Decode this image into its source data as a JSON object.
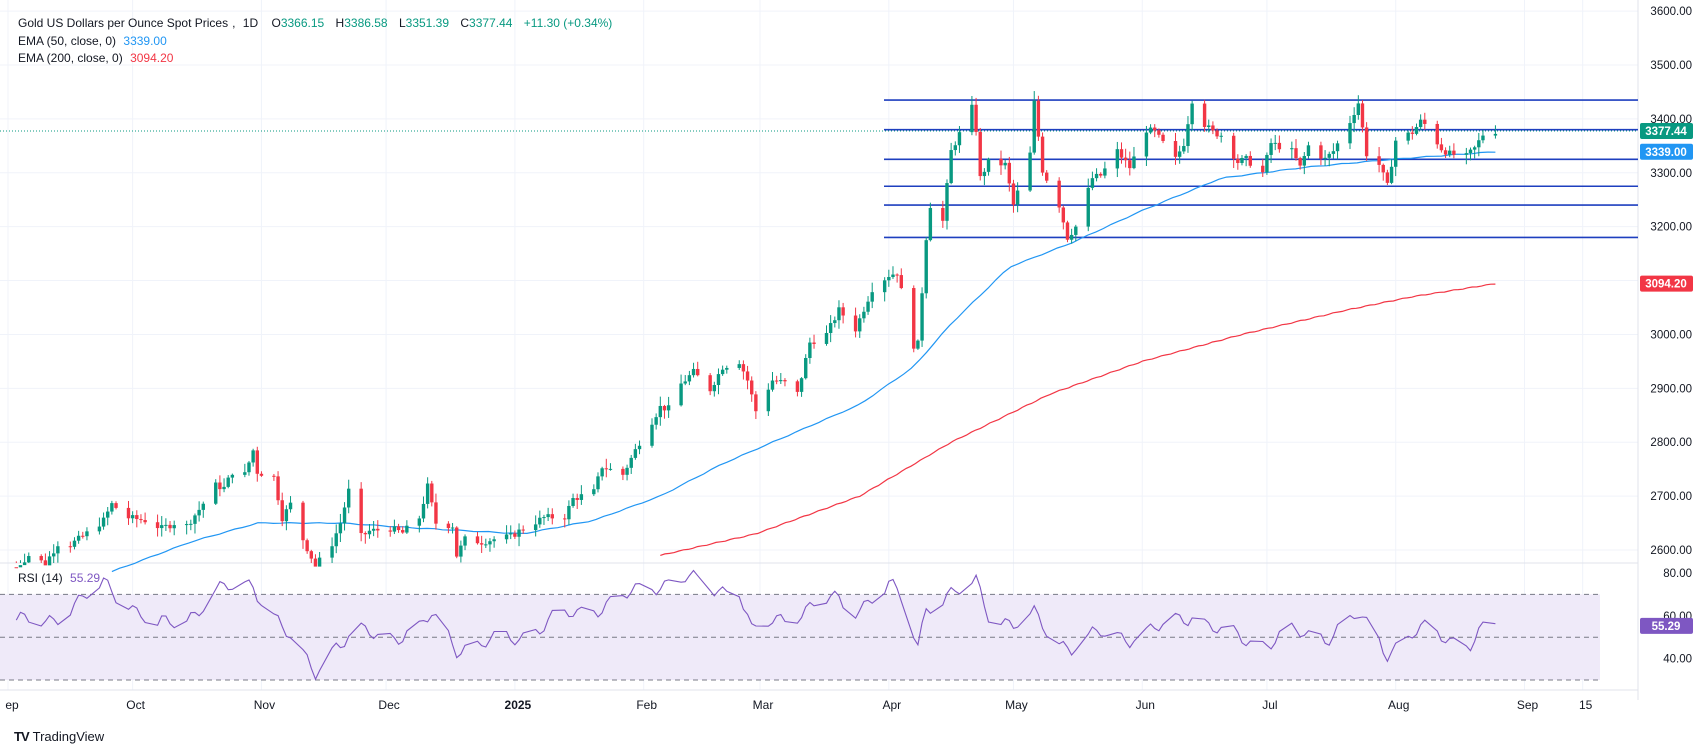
{
  "legend": {
    "symbol": "Gold US Dollars per Ounce Spot Prices",
    "interval": "1D",
    "o_label": "O",
    "o_value": "3366.15",
    "h_label": "H",
    "h_value": "3386.58",
    "l_label": "L",
    "l_value": "3351.39",
    "c_label": "C",
    "c_value": "3377.44",
    "change": "+11.30 (+0.34%)",
    "ema50_label": "EMA (50, close, 0)",
    "ema50_value": "3339.00",
    "ema200_label": "EMA (200, close, 0)",
    "ema200_value": "3094.20",
    "rsi_label": "RSI (14)",
    "rsi_value": "55.29"
  },
  "branding": {
    "logo_mark": "TV",
    "logo_text": "TradingView"
  },
  "colors": {
    "up": "#089981",
    "down": "#f23645",
    "ema50": "#2196f3",
    "ema200": "#f23645",
    "hlines": "#1e3fbf",
    "rsi": "#7e57c2",
    "rsi_band": "#efeaf9"
  },
  "chart_data": {
    "type": "candlestick",
    "price_axis": {
      "ticks": [
        2600,
        2700,
        2800,
        2900,
        3000,
        3100,
        3200,
        3300,
        3400,
        3500,
        3600
      ],
      "tick_labels": [
        "2600.00",
        "2700.00",
        "2800.00",
        "2900.00",
        "3000.00",
        "3100.00",
        "3200.00",
        "3300.00",
        "3400.00",
        "3500.00",
        "3600.00"
      ]
    },
    "time_axis": {
      "labels": [
        "ep",
        "Oct",
        "Nov",
        "Dec",
        "2025",
        "Feb",
        "Mar",
        "Apr",
        "May",
        "Jun",
        "Jul",
        "Aug",
        "Sep",
        "15"
      ],
      "dates": [
        "2024-09-01",
        "2024-10-01",
        "2024-11-01",
        "2024-12-01",
        "2025-01-01",
        "2025-02-01",
        "2025-03-01",
        "2025-04-01",
        "2025-05-01",
        "2025-06-01",
        "2025-07-01",
        "2025-08-01",
        "2025-09-01",
        "2025-09-15"
      ]
    },
    "horizontal_levels": [
      3435,
      3380,
      3325,
      3275,
      3240,
      3180
    ],
    "price_badges": [
      {
        "label": "3377.44",
        "value": 3377.44,
        "color": "#089981"
      },
      {
        "label": "3339.00",
        "value": 3339.0,
        "color": "#2196f3"
      },
      {
        "label": "3094.20",
        "value": 3094.2,
        "color": "#f23645"
      }
    ],
    "closes": [
      [
        "2024-09-03",
        2568
      ],
      [
        "2024-09-06",
        2590
      ],
      [
        "2024-09-10",
        2575
      ],
      [
        "2024-09-13",
        2612
      ],
      [
        "2024-09-16",
        2610
      ],
      [
        "2024-09-19",
        2625
      ],
      [
        "2024-09-24",
        2655
      ],
      [
        "2024-09-26",
        2685
      ],
      [
        "2024-09-30",
        2660
      ],
      [
        "2024-10-04",
        2655
      ],
      [
        "2024-10-08",
        2640
      ],
      [
        "2024-10-11",
        2650
      ],
      [
        "2024-10-14",
        2645
      ],
      [
        "2024-10-17",
        2675
      ],
      [
        "2024-10-21",
        2720
      ],
      [
        "2024-10-23",
        2715
      ],
      [
        "2024-10-25",
        2745
      ],
      [
        "2024-10-28",
        2740
      ],
      [
        "2024-10-30",
        2785
      ],
      [
        "2024-10-31",
        2745
      ],
      [
        "2024-11-04",
        2735
      ],
      [
        "2024-11-06",
        2660
      ],
      [
        "2024-11-08",
        2685
      ],
      [
        "2024-11-11",
        2620
      ],
      [
        "2024-11-14",
        2570
      ],
      [
        "2024-11-18",
        2612
      ],
      [
        "2024-11-20",
        2650
      ],
      [
        "2024-11-22",
        2710
      ],
      [
        "2024-11-25",
        2625
      ],
      [
        "2024-11-27",
        2635
      ],
      [
        "2024-12-02",
        2640
      ],
      [
        "2024-12-05",
        2632
      ],
      [
        "2024-12-09",
        2660
      ],
      [
        "2024-12-11",
        2718
      ],
      [
        "2024-12-13",
        2650
      ],
      [
        "2024-12-17",
        2645
      ],
      [
        "2024-12-18",
        2590
      ],
      [
        "2024-12-20",
        2620
      ],
      [
        "2024-12-24",
        2615
      ],
      [
        "2024-12-27",
        2620
      ],
      [
        "2024-12-31",
        2625
      ],
      [
        "2025-01-03",
        2640
      ],
      [
        "2025-01-08",
        2660
      ],
      [
        "2025-01-13",
        2662
      ],
      [
        "2025-01-15",
        2695
      ],
      [
        "2025-01-20",
        2708
      ],
      [
        "2025-01-22",
        2755
      ],
      [
        "2025-01-27",
        2740
      ],
      [
        "2025-01-31",
        2800
      ],
      [
        "2025-02-05",
        2865
      ],
      [
        "2025-02-07",
        2862
      ],
      [
        "2025-02-10",
        2908
      ],
      [
        "2025-02-13",
        2930
      ],
      [
        "2025-02-17",
        2898
      ],
      [
        "2025-02-20",
        2940
      ],
      [
        "2025-02-24",
        2950
      ],
      [
        "2025-02-26",
        2915
      ],
      [
        "2025-02-28",
        2858
      ],
      [
        "2025-03-04",
        2915
      ],
      [
        "2025-03-07",
        2910
      ],
      [
        "2025-03-10",
        2890
      ],
      [
        "2025-03-13",
        2985
      ],
      [
        "2025-03-17",
        3000
      ],
      [
        "2025-03-20",
        3045
      ],
      [
        "2025-03-24",
        3010
      ],
      [
        "2025-03-28",
        3085
      ],
      [
        "2025-04-01",
        3110
      ],
      [
        "2025-04-03",
        3115
      ],
      [
        "2025-04-07",
        2980
      ],
      [
        "2025-04-08",
        2982
      ],
      [
        "2025-04-09",
        3080
      ],
      [
        "2025-04-10",
        3180
      ],
      [
        "2025-04-11",
        3240
      ],
      [
        "2025-04-14",
        3210
      ],
      [
        "2025-04-16",
        3340
      ],
      [
        "2025-04-21",
        3420
      ],
      [
        "2025-04-22",
        3380
      ],
      [
        "2025-04-23",
        3290
      ],
      [
        "2025-04-25",
        3320
      ],
      [
        "2025-04-29",
        3315
      ],
      [
        "2025-05-01",
        3240
      ],
      [
        "2025-05-05",
        3335
      ],
      [
        "2025-05-06",
        3430
      ],
      [
        "2025-05-08",
        3305
      ],
      [
        "2025-05-12",
        3240
      ],
      [
        "2025-05-14",
        3180
      ],
      [
        "2025-05-16",
        3200
      ],
      [
        "2025-05-20",
        3290
      ],
      [
        "2025-05-22",
        3295
      ],
      [
        "2025-05-26",
        3340
      ],
      [
        "2025-05-29",
        3310
      ],
      [
        "2025-06-02",
        3380
      ],
      [
        "2025-06-04",
        3375
      ],
      [
        "2025-06-09",
        3325
      ],
      [
        "2025-06-11",
        3355
      ],
      [
        "2025-06-13",
        3435
      ],
      [
        "2025-06-16",
        3390
      ],
      [
        "2025-06-18",
        3375
      ],
      [
        "2025-06-20",
        3370
      ],
      [
        "2025-06-24",
        3320
      ],
      [
        "2025-06-26",
        3325
      ],
      [
        "2025-06-30",
        3300
      ],
      [
        "2025-07-02",
        3355
      ],
      [
        "2025-07-07",
        3340
      ],
      [
        "2025-07-09",
        3310
      ],
      [
        "2025-07-11",
        3350
      ],
      [
        "2025-07-15",
        3325
      ],
      [
        "2025-07-17",
        3340
      ],
      [
        "2025-07-21",
        3395
      ],
      [
        "2025-07-23",
        3430
      ],
      [
        "2025-07-25",
        3335
      ],
      [
        "2025-07-28",
        3315
      ],
      [
        "2025-07-30",
        3275
      ],
      [
        "2025-08-01",
        3360
      ],
      [
        "2025-08-05",
        3375
      ],
      [
        "2025-08-07",
        3395
      ],
      [
        "2025-08-08",
        3390
      ],
      [
        "2025-08-12",
        3345
      ],
      [
        "2025-08-14",
        3335
      ],
      [
        "2025-08-18",
        3330
      ],
      [
        "2025-08-20",
        3345
      ],
      [
        "2025-08-22",
        3371
      ],
      [
        "2025-08-25",
        3377.44
      ]
    ],
    "ema50": [
      [
        "2024-09-26",
        2560
      ],
      [
        "2024-10-15",
        2615
      ],
      [
        "2024-10-31",
        2650
      ],
      [
        "2024-11-20",
        2650
      ],
      [
        "2024-12-10",
        2640
      ],
      [
        "2025-01-03",
        2630
      ],
      [
        "2025-01-20",
        2655
      ],
      [
        "2025-02-05",
        2700
      ],
      [
        "2025-02-20",
        2760
      ],
      [
        "2025-03-10",
        2820
      ],
      [
        "2025-03-25",
        2870
      ],
      [
        "2025-04-07",
        2940
      ],
      [
        "2025-04-16",
        3020
      ],
      [
        "2025-04-30",
        3125
      ],
      [
        "2025-05-15",
        3170
      ],
      [
        "2025-06-01",
        3230
      ],
      [
        "2025-06-20",
        3290
      ],
      [
        "2025-07-10",
        3310
      ],
      [
        "2025-07-31",
        3325
      ],
      [
        "2025-08-25",
        3339
      ]
    ],
    "ema200": [
      [
        "2025-02-05",
        2590
      ],
      [
        "2025-02-28",
        2630
      ],
      [
        "2025-03-25",
        2700
      ],
      [
        "2025-04-16",
        2800
      ],
      [
        "2025-05-10",
        2890
      ],
      [
        "2025-06-01",
        2950
      ],
      [
        "2025-06-25",
        3000
      ],
      [
        "2025-07-20",
        3045
      ],
      [
        "2025-08-05",
        3070
      ],
      [
        "2025-08-25",
        3094.2
      ]
    ],
    "rsi": {
      "label": "RSI (14)",
      "last": 55.29,
      "ticks": [
        40,
        60,
        80
      ],
      "tick_labels": [
        "40.00",
        "60.00",
        "80.00"
      ],
      "bands": [
        30,
        50,
        70
      ],
      "values": [
        [
          "2024-09-03",
          58
        ],
        [
          "2024-09-10",
          56
        ],
        [
          "2024-09-17",
          66
        ],
        [
          "2024-09-24",
          74
        ],
        [
          "2024-09-30",
          66
        ],
        [
          "2024-10-07",
          55
        ],
        [
          "2024-10-14",
          58
        ],
        [
          "2024-10-21",
          72
        ],
        [
          "2024-10-30",
          74
        ],
        [
          "2024-11-05",
          58
        ],
        [
          "2024-11-11",
          40
        ],
        [
          "2024-11-14",
          34
        ],
        [
          "2024-11-19",
          47
        ],
        [
          "2024-11-25",
          52
        ],
        [
          "2024-12-02",
          50
        ],
        [
          "2024-12-09",
          54
        ],
        [
          "2024-12-12",
          60
        ],
        [
          "2024-12-18",
          45
        ],
        [
          "2024-12-24",
          47
        ],
        [
          "2025-01-02",
          50
        ],
        [
          "2025-01-10",
          58
        ],
        [
          "2025-01-17",
          62
        ],
        [
          "2025-01-24",
          66
        ],
        [
          "2025-01-31",
          72
        ],
        [
          "2025-02-07",
          76
        ],
        [
          "2025-02-11",
          78
        ],
        [
          "2025-02-18",
          72
        ],
        [
          "2025-02-24",
          73
        ],
        [
          "2025-02-27",
          52
        ],
        [
          "2025-03-04",
          57
        ],
        [
          "2025-03-12",
          63
        ],
        [
          "2025-03-18",
          68
        ],
        [
          "2025-03-24",
          63
        ],
        [
          "2025-04-01",
          74
        ],
        [
          "2025-04-04",
          68
        ],
        [
          "2025-04-08",
          46
        ],
        [
          "2025-04-10",
          65
        ],
        [
          "2025-04-17",
          70
        ],
        [
          "2025-04-22",
          76
        ],
        [
          "2025-04-25",
          62
        ],
        [
          "2025-05-01",
          55
        ],
        [
          "2025-05-06",
          60
        ],
        [
          "2025-05-12",
          48
        ],
        [
          "2025-05-15",
          45
        ],
        [
          "2025-05-22",
          52
        ],
        [
          "2025-05-29",
          50
        ],
        [
          "2025-06-05",
          54
        ],
        [
          "2025-06-13",
          61
        ],
        [
          "2025-06-20",
          52
        ],
        [
          "2025-06-30",
          47
        ],
        [
          "2025-07-07",
          52
        ],
        [
          "2025-07-15",
          50
        ],
        [
          "2025-07-23",
          60
        ],
        [
          "2025-07-30",
          43
        ],
        [
          "2025-08-05",
          52
        ],
        [
          "2025-08-08",
          53
        ],
        [
          "2025-08-14",
          49
        ],
        [
          "2025-08-19",
          48
        ],
        [
          "2025-08-22",
          53
        ],
        [
          "2025-08-25",
          55.29
        ]
      ]
    }
  }
}
